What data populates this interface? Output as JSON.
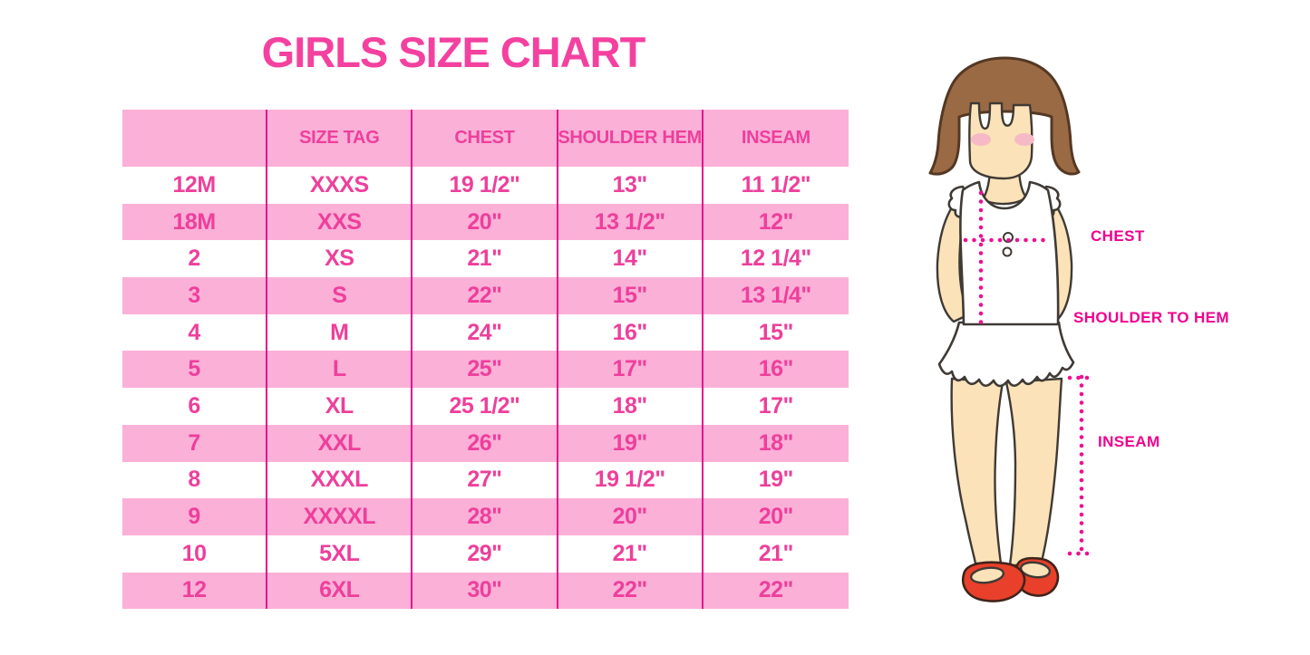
{
  "title": "GIRLS SIZE CHART",
  "chart_data": {
    "type": "table",
    "title": "GIRLS SIZE CHART",
    "columns": [
      "",
      "SIZE TAG",
      "CHEST",
      "SHOULDER HEM",
      "INSEAM"
    ],
    "rows": [
      [
        "12M",
        "XXXS",
        "19 1/2\"",
        "13\"",
        "11 1/2\""
      ],
      [
        "18M",
        "XXS",
        "20\"",
        "13 1/2\"",
        "12\""
      ],
      [
        "2",
        "XS",
        "21\"",
        "14\"",
        "12 1/4\""
      ],
      [
        "3",
        "S",
        "22\"",
        "15\"",
        "13 1/4\""
      ],
      [
        "4",
        "M",
        "24\"",
        "16\"",
        "15\""
      ],
      [
        "5",
        "L",
        "25\"",
        "17\"",
        "16\""
      ],
      [
        "6",
        "XL",
        "25 1/2\"",
        "18\"",
        "17\""
      ],
      [
        "7",
        "XXL",
        "26\"",
        "19\"",
        "18\""
      ],
      [
        "8",
        "XXXL",
        "27\"",
        "19 1/2\"",
        "19\""
      ],
      [
        "9",
        "XXXXL",
        "28\"",
        "20\"",
        "20\""
      ],
      [
        "10",
        "5XL",
        "29\"",
        "21\"",
        "21\""
      ],
      [
        "12",
        "6XL",
        "30\"",
        "22\"",
        "22\""
      ]
    ]
  },
  "figure": {
    "labels": {
      "chest": "CHEST",
      "shoulder_to_hem": "SHOULDER TO HEM",
      "inseam": "INSEAM"
    }
  },
  "colors": {
    "title_pink": "#f4419f",
    "table_text_pink": "#ee3f9b",
    "row_pink": "#fbb0d8",
    "grid_line_magenta": "#e5148d",
    "label_magenta": "#f0008e",
    "dot_magenta": "#ed1191",
    "hair_brown": "#9a6a45",
    "hair_outline": "#543823",
    "skin_tone": "#fbe2b8",
    "outline_dark": "#3f3a35",
    "blush_pink": "#f5bac6",
    "shoe_red": "#e8402a",
    "shoe_outline": "#40231a",
    "garment_white": "#ffffff"
  }
}
